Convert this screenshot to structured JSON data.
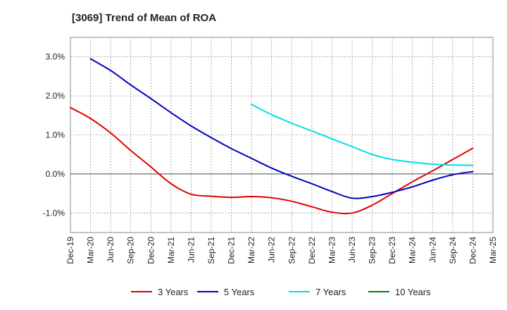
{
  "chart_data": {
    "type": "line",
    "title": "[3069]  Trend of Mean of ROA",
    "xlabel": "",
    "ylabel": "",
    "ylim": [
      -1.5,
      3.5
    ],
    "y_ticks": [
      "3.0%",
      "2.0%",
      "1.0%",
      "0.0%",
      "-1.0%"
    ],
    "y_tick_values": [
      3.0,
      2.0,
      1.0,
      0.0,
      -1.0
    ],
    "grid": true,
    "legend_position": "bottom",
    "x": [
      "Dec-19",
      "Mar-20",
      "Jun-20",
      "Sep-20",
      "Dec-20",
      "Mar-21",
      "Jun-21",
      "Sep-21",
      "Dec-21",
      "Mar-22",
      "Jun-22",
      "Sep-22",
      "Dec-22",
      "Mar-23",
      "Jun-23",
      "Sep-23",
      "Dec-23",
      "Mar-24",
      "Jun-24",
      "Sep-24",
      "Dec-24",
      "Mar-25"
    ],
    "series": [
      {
        "name": "3 Years",
        "color": "#e00000",
        "values": [
          1.7,
          1.42,
          1.05,
          0.6,
          0.18,
          -0.25,
          -0.52,
          -0.57,
          -0.6,
          -0.58,
          -0.61,
          -0.7,
          -0.84,
          -0.98,
          -1.0,
          -0.8,
          -0.5,
          -0.2,
          0.08,
          0.37,
          0.66,
          null
        ]
      },
      {
        "name": "5 Years",
        "color": "#0000c0",
        "values": [
          null,
          2.95,
          2.65,
          2.28,
          1.93,
          1.57,
          1.23,
          0.93,
          0.65,
          0.4,
          0.15,
          -0.06,
          -0.25,
          -0.45,
          -0.62,
          -0.58,
          -0.47,
          -0.33,
          -0.16,
          -0.02,
          0.06,
          null
        ]
      },
      {
        "name": "7 Years",
        "color": "#00e0e0",
        "values": [
          null,
          null,
          null,
          null,
          null,
          null,
          null,
          null,
          null,
          1.78,
          1.52,
          1.3,
          1.1,
          0.9,
          0.7,
          0.5,
          0.37,
          0.3,
          0.25,
          0.23,
          0.22,
          null
        ]
      },
      {
        "name": "10 Years",
        "color": "#008000",
        "values": [
          null,
          null,
          null,
          null,
          null,
          null,
          null,
          null,
          null,
          null,
          null,
          null,
          null,
          null,
          null,
          null,
          null,
          null,
          null,
          null,
          null,
          null
        ]
      }
    ]
  }
}
